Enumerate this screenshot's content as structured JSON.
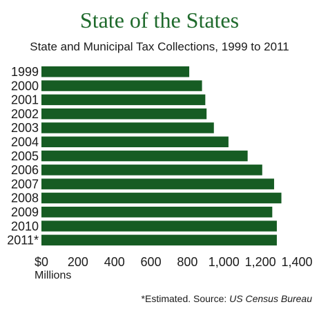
{
  "chart_data": {
    "type": "bar",
    "orientation": "horizontal",
    "title": "State of the States",
    "subtitle": "State and Municipal Tax Collections, 1999 to 2011",
    "categories": [
      "1999",
      "2000",
      "2001",
      "2002",
      "2003",
      "2004",
      "2005",
      "2006",
      "2007",
      "2008",
      "2009",
      "2010",
      "2011*"
    ],
    "values": [
      810,
      880,
      898,
      905,
      945,
      1025,
      1130,
      1210,
      1275,
      1315,
      1265,
      1290,
      1290
    ],
    "xlabel": "Millions",
    "xlim": [
      0,
      1400
    ],
    "xticks": [
      "$0",
      "200",
      "400",
      "600",
      "800",
      "1,000",
      "1,200",
      "1,400"
    ],
    "xtick_values": [
      0,
      200,
      400,
      600,
      800,
      1000,
      1200,
      1400
    ],
    "grid": false,
    "legend": "none",
    "bar_color": "#165c23",
    "title_color": "#1f6a2c",
    "note_prefix": "*Estimated. Source: ",
    "note_source": "US Census Bureau"
  }
}
